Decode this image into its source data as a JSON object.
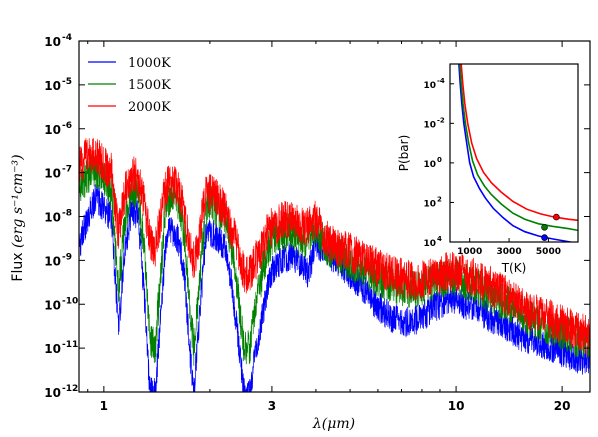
{
  "chart_data": [
    {
      "type": "line",
      "xscale": "log",
      "yscale": "log",
      "xlim": [
        0.85,
        24
      ],
      "ylim": [
        1e-12,
        0.0001
      ],
      "xticks": [
        {
          "v": 1,
          "label": "1"
        },
        {
          "v": 3,
          "label": "3"
        },
        {
          "v": 10,
          "label": "10"
        },
        {
          "v": 20,
          "label": "20"
        }
      ],
      "yticks": [
        {
          "v": 1e-12,
          "label": "10",
          "exp": "-12"
        },
        {
          "v": 1e-11,
          "label": "10",
          "exp": "-11"
        },
        {
          "v": 1e-10,
          "label": "10",
          "exp": "-10"
        },
        {
          "v": 1e-09,
          "label": "10",
          "exp": "-9"
        },
        {
          "v": 1e-08,
          "label": "10",
          "exp": "-8"
        },
        {
          "v": 1e-07,
          "label": "10",
          "exp": "-7"
        },
        {
          "v": 1e-06,
          "label": "10",
          "exp": "-6"
        },
        {
          "v": 1e-05,
          "label": "10",
          "exp": "-5"
        },
        {
          "v": 0.0001,
          "label": "10",
          "exp": "-4"
        }
      ],
      "xlabel": "λ(μm)",
      "ylabel_prefix": "Flux ",
      "ylabel_units": "(erg s⁻¹cm⁻³)",
      "legend_position": "top-left",
      "series": [
        {
          "name": "1000K",
          "color": "#0000ff",
          "offset": 0,
          "x": [
            0.85,
            0.9,
            0.95,
            1.0,
            1.05,
            1.1,
            1.15,
            1.2,
            1.25,
            1.3,
            1.35,
            1.4,
            1.45,
            1.5,
            1.55,
            1.6,
            1.65,
            1.7,
            1.75,
            1.8,
            1.85,
            1.9,
            1.95,
            2.0,
            2.1,
            2.2,
            2.3,
            2.4,
            2.5,
            2.6,
            2.7,
            2.8,
            2.9,
            3.0,
            3.2,
            3.4,
            3.6,
            3.8,
            4.0,
            4.3,
            4.6,
            5.0,
            5.5,
            6.0,
            6.5,
            7.0,
            7.5,
            8.0,
            8.5,
            9.0,
            9.5,
            10,
            11,
            12,
            13,
            14,
            15,
            16,
            18,
            20,
            22,
            24
          ],
          "y": [
            2e-09,
            1e-08,
            3e-08,
            1.5e-08,
            1e-08,
            3e-11,
            2e-09,
            1.5e-08,
            1e-08,
            2e-10,
            1e-12,
            1e-12,
            5e-11,
            3e-09,
            5e-09,
            4e-09,
            2e-09,
            3e-10,
            1e-11,
            1e-12,
            2e-11,
            3e-10,
            4e-09,
            5e-09,
            3e-09,
            2e-09,
            3e-10,
            2e-11,
            1e-12,
            1e-12,
            1e-11,
            4e-11,
            2e-10,
            6e-10,
            1e-09,
            1.3e-09,
            8e-10,
            5e-10,
            2.5e-09,
            1.5e-09,
            1e-09,
            5e-10,
            2e-10,
            9e-11,
            5e-11,
            4e-11,
            4e-11,
            5e-11,
            8e-11,
            1e-10,
            1.2e-10,
            1.2e-10,
            9e-11,
            6e-11,
            4e-11,
            3e-11,
            2e-11,
            1.6e-11,
            1.2e-11,
            8e-12,
            6e-12,
            5e-12
          ]
        },
        {
          "name": "1500K",
          "color": "#008000",
          "offset": 0.55,
          "x": [
            0.85,
            0.9,
            0.95,
            1.0,
            1.05,
            1.1,
            1.15,
            1.2,
            1.25,
            1.3,
            1.35,
            1.4,
            1.45,
            1.5,
            1.55,
            1.6,
            1.65,
            1.7,
            1.75,
            1.8,
            1.85,
            1.9,
            1.95,
            2.0,
            2.1,
            2.2,
            2.3,
            2.4,
            2.5,
            2.6,
            2.7,
            2.8,
            2.9,
            3.0,
            3.2,
            3.4,
            3.6,
            3.8,
            4.0,
            4.3,
            4.6,
            5.0,
            5.5,
            6.0,
            6.5,
            7.0,
            7.5,
            8.0,
            8.5,
            9.0,
            9.5,
            10,
            11,
            12,
            13,
            14,
            15,
            16,
            18,
            20,
            22,
            24
          ],
          "y": [
            4e-08,
            9e-08,
            1.2e-07,
            7e-08,
            4e-08,
            2e-10,
            1e-08,
            5e-08,
            3e-08,
            2e-09,
            2e-11,
            1e-11,
            5e-10,
            2e-08,
            3e-08,
            2.5e-08,
            1.5e-08,
            3e-09,
            1e-10,
            1e-11,
            1e-10,
            2e-09,
            1.5e-08,
            2e-08,
            1.5e-08,
            1e-08,
            2e-09,
            2e-10,
            1e-11,
            1e-11,
            1e-10,
            4e-10,
            1.5e-09,
            3e-09,
            4e-09,
            5e-09,
            3e-09,
            3e-09,
            6e-09,
            2e-09,
            1.4e-09,
            9e-10,
            6e-10,
            4e-10,
            3e-10,
            2.4e-10,
            2.2e-10,
            2.4e-10,
            3e-10,
            3.6e-10,
            4e-10,
            4e-10,
            3e-10,
            2e-10,
            1.4e-10,
            1e-10,
            7e-11,
            5e-11,
            3.4e-11,
            2.4e-11,
            1.6e-11,
            1.2e-11
          ]
        },
        {
          "name": "2000K",
          "color": "#ff0000",
          "offset": 0.7,
          "x": [
            0.85,
            0.9,
            0.95,
            1.0,
            1.05,
            1.1,
            1.15,
            1.2,
            1.25,
            1.3,
            1.35,
            1.4,
            1.45,
            1.5,
            1.55,
            1.6,
            1.65,
            1.7,
            1.75,
            1.8,
            1.85,
            1.9,
            1.95,
            2.0,
            2.1,
            2.2,
            2.3,
            2.4,
            2.5,
            2.6,
            2.7,
            2.8,
            2.9,
            3.0,
            3.2,
            3.4,
            3.6,
            3.8,
            4.0,
            4.3,
            4.6,
            5.0,
            5.5,
            6.0,
            6.5,
            7.0,
            7.5,
            8.0,
            8.5,
            9.0,
            9.5,
            10,
            11,
            12,
            13,
            14,
            15,
            16,
            18,
            20,
            22,
            24
          ],
          "y": [
            1.5e-07,
            2.5e-07,
            2.8e-07,
            1.6e-07,
            1e-07,
            4e-09,
            4e-08,
            1e-07,
            7e-08,
            2e-08,
            3e-09,
            2e-09,
            1e-08,
            5e-08,
            6e-08,
            5e-08,
            3e-08,
            1e-08,
            2e-09,
            1e-09,
            2e-09,
            1e-08,
            3e-08,
            3.5e-08,
            2.5e-08,
            1.5e-08,
            5e-09,
            2e-09,
            5e-10,
            5e-10,
            1e-09,
            2e-09,
            4e-09,
            6e-09,
            8e-09,
            8e-09,
            6e-09,
            6e-09,
            1e-08,
            3e-09,
            2e-09,
            1.5e-09,
            1e-09,
            7e-10,
            5e-10,
            4e-10,
            3.5e-10,
            3.5e-10,
            4e-10,
            5e-10,
            5.5e-10,
            5.5e-10,
            4.5e-10,
            3e-10,
            2.2e-10,
            1.5e-10,
            1e-10,
            7.5e-11,
            5e-11,
            3.5e-11,
            2.5e-11,
            1.8e-11
          ]
        }
      ]
    },
    {
      "type": "line",
      "inset": true,
      "xscale": "linear",
      "yscale": "log",
      "yinverted": true,
      "xlim": [
        0,
        6500
      ],
      "ylim": [
        1e-05,
        10000.0
      ],
      "xticks": [
        {
          "v": 1000,
          "label": "1000"
        },
        {
          "v": 3000,
          "label": "3000"
        },
        {
          "v": 5000,
          "label": "5000"
        }
      ],
      "yticks": [
        {
          "v": 0.0001,
          "label": "10",
          "exp": "-4"
        },
        {
          "v": 0.01,
          "label": "10",
          "exp": "-2"
        },
        {
          "v": 1,
          "label": "10",
          "exp": "0"
        },
        {
          "v": 100.0,
          "label": "10",
          "exp": "2"
        },
        {
          "v": 10000.0,
          "label": "10",
          "exp": "4"
        }
      ],
      "xlabel": "T(K)",
      "ylabel": "P(bar)",
      "series": [
        {
          "name": "1000K",
          "color": "#0000ff",
          "T": [
            450,
            520,
            600,
            700,
            850,
            1000,
            1200,
            1500,
            1800,
            2200,
            2700,
            3200,
            3800,
            4500,
            5200,
            6000,
            6500
          ],
          "P": [
            1e-05,
            0.0001,
            0.001,
            0.01,
            0.1,
            1,
            5,
            20,
            60,
            200,
            600,
            1500,
            3000,
            5000,
            7000,
            9500,
            12000
          ],
          "marker": {
            "T": 4800,
            "P": 6000
          }
        },
        {
          "name": "1500K",
          "color": "#008000",
          "T": [
            500,
            570,
            660,
            780,
            950,
            1150,
            1400,
            1750,
            2100,
            2600,
            3200,
            3800,
            4500,
            5200,
            6000,
            6500
          ],
          "P": [
            1e-05,
            0.0001,
            0.001,
            0.01,
            0.1,
            0.8,
            4,
            15,
            40,
            120,
            350,
            700,
            1200,
            1600,
            2100,
            2600
          ],
          "marker": {
            "T": 4800,
            "P": 1800
          }
        },
        {
          "name": "2000K",
          "color": "#ff0000",
          "T": [
            570,
            650,
            750,
            900,
            1100,
            1350,
            1700,
            2100,
            2600,
            3200,
            3900,
            4600,
            5300,
            6000,
            6500
          ],
          "P": [
            1e-05,
            0.0001,
            0.001,
            0.01,
            0.1,
            0.6,
            3,
            10,
            30,
            90,
            220,
            380,
            550,
            700,
            800
          ],
          "marker": {
            "T": 5400,
            "P": 550
          }
        }
      ]
    }
  ]
}
